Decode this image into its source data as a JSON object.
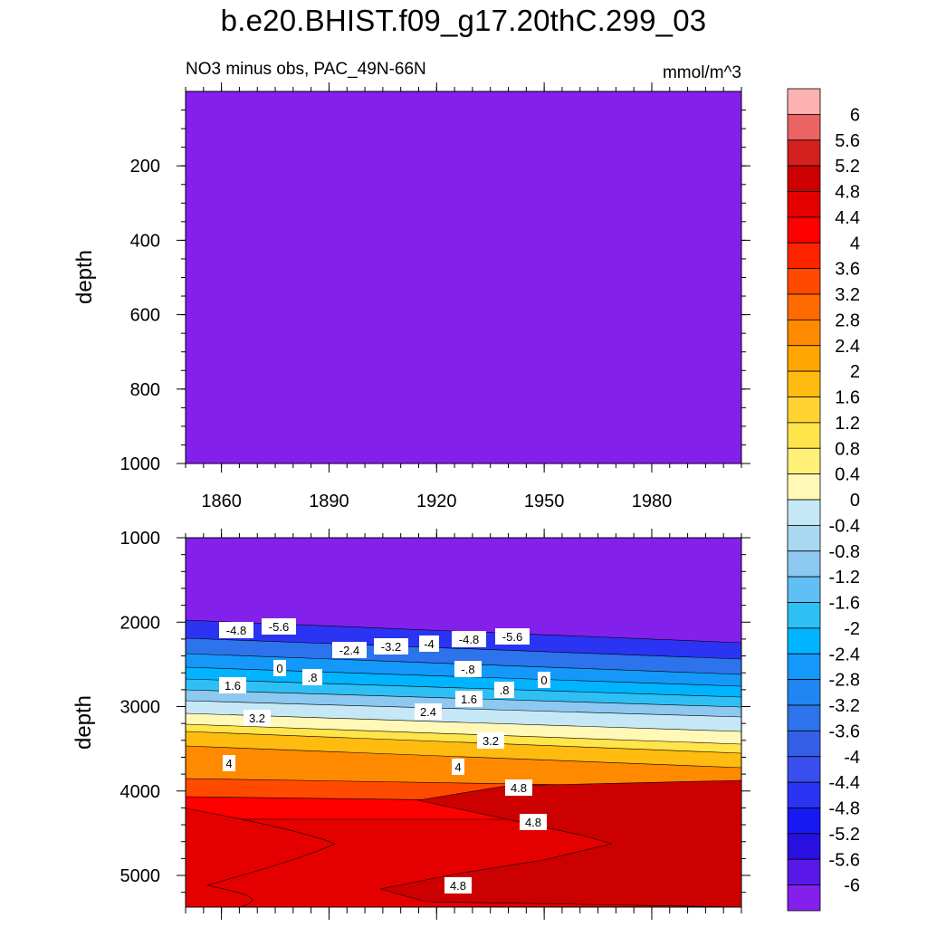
{
  "page": {
    "title": "b.e20.BHIST.f09_g17.20thC.299_03"
  },
  "colorbar": {
    "levels": [
      "6",
      "5.6",
      "5.2",
      "4.8",
      "4.4",
      "4",
      "3.6",
      "3.2",
      "2.8",
      "2.4",
      "2",
      "1.6",
      "1.2",
      "0.8",
      "0.4",
      "0",
      "-0.4",
      "-0.8",
      "-1.2",
      "-1.6",
      "-2",
      "-2.4",
      "-2.8",
      "-3.2",
      "-3.6",
      "-4",
      "-4.4",
      "-4.8",
      "-5.2",
      "-5.6",
      "-6"
    ],
    "colors": [
      "#fdb2b2",
      "#ea6464",
      "#d52020",
      "#cc0000",
      "#e50000",
      "#fe0000",
      "#ff2400",
      "#ff4a00",
      "#ff6a00",
      "#ff8a00",
      "#ffa600",
      "#ffbb10",
      "#ffd232",
      "#ffe44a",
      "#fff078",
      "#fff8b6",
      "#c6e8f6",
      "#a8d8f2",
      "#8cc8f0",
      "#60bff5",
      "#2ec0f5",
      "#00b4ff",
      "#1499fa",
      "#1f86f2",
      "#2c73ec",
      "#365fe8",
      "#3a4ef0",
      "#2a34f2",
      "#1818f2",
      "#2a10e0",
      "#5a18e8",
      "#8420ec"
    ]
  },
  "chart_data": [
    {
      "type": "heatmap",
      "subtitle_left": "NO3 minus obs, PAC_49N-66N",
      "subtitle_right": "mmol/m^3",
      "ylabel": "depth",
      "x_ticks": [
        "1860",
        "1890",
        "1920",
        "1950",
        "1980"
      ],
      "y_ticks": [
        "200",
        "400",
        "600",
        "800",
        "1000"
      ],
      "xlim": [
        1850,
        2005
      ],
      "ylim": [
        0,
        1000
      ],
      "y_reversed": true,
      "fill_value": "-6 (below lowest level, uniform)",
      "fill_color": "#8420ec"
    },
    {
      "type": "heatmap",
      "ylabel": "depth",
      "y_ticks": [
        "1000",
        "2000",
        "3000",
        "4000",
        "5000"
      ],
      "xlim": [
        1850,
        2005
      ],
      "ylim": [
        1000,
        5375
      ],
      "y_reversed": true,
      "contour_labels": [
        "-4.8",
        "-5.6",
        "-2.4",
        "-3.2",
        "-4",
        "-4.8",
        "-5.6",
        "0",
        ".8",
        "-.8",
        "0",
        "1.6",
        "1.6",
        ".8",
        "2.4",
        "3.2",
        "3.2",
        "4",
        "4",
        "4.8",
        "4.8",
        "4.8"
      ],
      "bands": [
        {
          "from": -6,
          "to": -5.6,
          "color": "#8420ec"
        },
        {
          "from": -5.6,
          "to": -4.8,
          "color": "#2a34f2"
        },
        {
          "from": -4.8,
          "to": -4.0,
          "color": "#2c73ec"
        },
        {
          "from": -4.0,
          "to": -3.2,
          "color": "#1499fa"
        },
        {
          "from": -3.2,
          "to": -2.4,
          "color": "#00b4ff"
        },
        {
          "from": -2.4,
          "to": -1.6,
          "color": "#2ec0f5"
        },
        {
          "from": -1.6,
          "to": -0.8,
          "color": "#8cc8f0"
        },
        {
          "from": -0.8,
          "to": 0,
          "color": "#c6e8f6"
        },
        {
          "from": 0,
          "to": 0.8,
          "color": "#fff8b6"
        },
        {
          "from": 0.8,
          "to": 1.6,
          "color": "#ffe44a"
        },
        {
          "from": 1.6,
          "to": 2.4,
          "color": "#ffbb10"
        },
        {
          "from": 2.4,
          "to": 3.2,
          "color": "#ff8a00"
        },
        {
          "from": 3.2,
          "to": 4.0,
          "color": "#ff4a00"
        },
        {
          "from": 4.0,
          "to": 4.4,
          "color": "#fe0000"
        },
        {
          "from": 4.4,
          "to": 4.8,
          "color": "#e50000"
        },
        {
          "from": 4.8,
          "to": 5.2,
          "color": "#cc0000"
        }
      ]
    }
  ]
}
